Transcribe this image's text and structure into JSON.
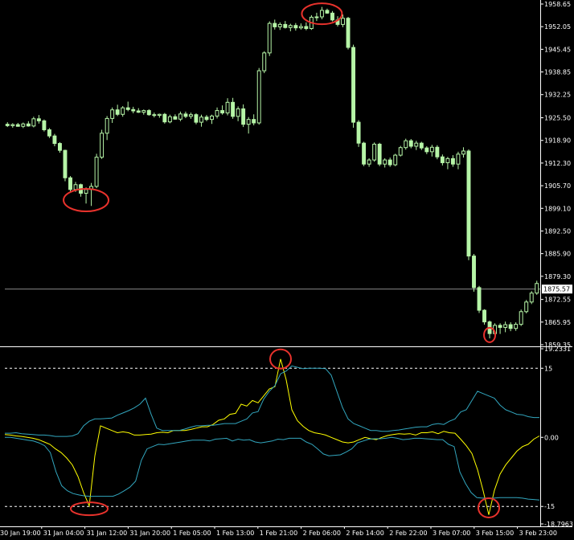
{
  "chart_data": [
    {
      "type": "candlestick",
      "y_ticks": [
        "1958.65",
        "1952.05",
        "1945.45",
        "1938.85",
        "1932.25",
        "1925.50",
        "1918.90",
        "1912.30",
        "1905.70",
        "1899.10",
        "1892.50",
        "1885.90",
        "1879.30",
        "1872.55",
        "1865.95",
        "1859.35"
      ],
      "ylim": [
        1859.35,
        1958.65
      ],
      "current_price": "1875.57",
      "candles_ohlc": [
        [
          1923.6,
          1924.2,
          1922.8,
          1923.2
        ],
        [
          1923.2,
          1923.9,
          1922.6,
          1923.5
        ],
        [
          1923.5,
          1924.0,
          1922.9,
          1923.0
        ],
        [
          1923.0,
          1924.1,
          1922.5,
          1923.7
        ],
        [
          1923.7,
          1924.5,
          1922.9,
          1923.1
        ],
        [
          1923.1,
          1925.8,
          1922.7,
          1925.2
        ],
        [
          1925.2,
          1926.3,
          1923.8,
          1924.6
        ],
        [
          1924.6,
          1925.0,
          1921.5,
          1922.0
        ],
        [
          1922.0,
          1922.5,
          1919.6,
          1920.2
        ],
        [
          1920.2,
          1920.8,
          1917.2,
          1918.0
        ],
        [
          1918.0,
          1918.4,
          1915.3,
          1916.0
        ],
        [
          1916.0,
          1916.2,
          1907.0,
          1908.0
        ],
        [
          1908.0,
          1908.5,
          1903.6,
          1904.6
        ],
        [
          1904.6,
          1906.8,
          1903.9,
          1906.0
        ],
        [
          1906.0,
          1906.3,
          1902.5,
          1903.5
        ],
        [
          1903.5,
          1905.2,
          1900.5,
          1904.6
        ],
        [
          1904.6,
          1906.5,
          1899.8,
          1905.5
        ],
        [
          1905.5,
          1915.0,
          1905.0,
          1914.0
        ],
        [
          1914.0,
          1922.0,
          1913.5,
          1921.0
        ],
        [
          1921.0,
          1926.0,
          1919.0,
          1925.3
        ],
        [
          1925.3,
          1928.5,
          1924.0,
          1927.8
        ],
        [
          1927.8,
          1929.3,
          1926.0,
          1926.5
        ],
        [
          1926.5,
          1928.9,
          1925.8,
          1928.4
        ],
        [
          1928.4,
          1930.2,
          1927.4,
          1927.9
        ],
        [
          1927.9,
          1928.7,
          1926.8,
          1927.5
        ],
        [
          1927.5,
          1928.3,
          1926.9,
          1927.1
        ],
        [
          1927.1,
          1927.9,
          1926.4,
          1927.6
        ],
        [
          1927.6,
          1928.0,
          1926.1,
          1926.4
        ],
        [
          1926.4,
          1927.0,
          1925.6,
          1926.2
        ],
        [
          1926.2,
          1926.7,
          1925.5,
          1926.5
        ],
        [
          1926.5,
          1926.9,
          1923.8,
          1924.3
        ],
        [
          1924.3,
          1926.4,
          1923.9,
          1925.8
        ],
        [
          1925.8,
          1926.5,
          1924.9,
          1925.1
        ],
        [
          1925.1,
          1927.3,
          1924.5,
          1926.6
        ],
        [
          1926.6,
          1927.3,
          1925.4,
          1925.9
        ],
        [
          1925.9,
          1927.0,
          1925.2,
          1926.4
        ],
        [
          1926.4,
          1926.8,
          1923.6,
          1924.2
        ],
        [
          1924.2,
          1926.4,
          1922.9,
          1925.7
        ],
        [
          1925.7,
          1926.3,
          1924.5,
          1925.0
        ],
        [
          1925.0,
          1926.4,
          1923.7,
          1926.0
        ],
        [
          1926.0,
          1928.5,
          1925.3,
          1927.6
        ],
        [
          1927.6,
          1929.1,
          1926.4,
          1926.9
        ],
        [
          1926.9,
          1931.2,
          1926.2,
          1930.0
        ],
        [
          1930.0,
          1931.3,
          1925.2,
          1925.9
        ],
        [
          1925.9,
          1928.8,
          1924.5,
          1928.1
        ],
        [
          1928.1,
          1929.4,
          1922.8,
          1923.6
        ],
        [
          1923.6,
          1925.7,
          1920.9,
          1925.0
        ],
        [
          1925.0,
          1926.5,
          1923.3,
          1924.0
        ],
        [
          1924.0,
          1940.0,
          1923.5,
          1939.2
        ],
        [
          1939.2,
          1944.9,
          1938.5,
          1944.4
        ],
        [
          1944.4,
          1953.6,
          1943.5,
          1953.0
        ],
        [
          1953.0,
          1954.1,
          1951.2,
          1952.0
        ],
        [
          1952.0,
          1953.3,
          1951.1,
          1952.7
        ],
        [
          1952.7,
          1953.7,
          1951.5,
          1951.8
        ],
        [
          1951.8,
          1952.9,
          1950.7,
          1952.4
        ],
        [
          1952.4,
          1953.1,
          1950.9,
          1951.7
        ],
        [
          1951.7,
          1953.0,
          1951.2,
          1952.1
        ],
        [
          1952.1,
          1953.3,
          1951.0,
          1951.5
        ],
        [
          1951.5,
          1955.4,
          1951.1,
          1954.8
        ],
        [
          1954.8,
          1956.1,
          1953.7,
          1954.9
        ],
        [
          1954.9,
          1957.8,
          1954.2,
          1956.8
        ],
        [
          1956.8,
          1957.3,
          1955.8,
          1956.0
        ],
        [
          1956.0,
          1956.6,
          1953.6,
          1954.0
        ],
        [
          1954.0,
          1955.1,
          1952.1,
          1952.7
        ],
        [
          1952.7,
          1955.6,
          1951.9,
          1954.5
        ],
        [
          1954.5,
          1954.9,
          1945.4,
          1946.0
        ],
        [
          1946.0,
          1946.8,
          1922.6,
          1924.2
        ],
        [
          1924.2,
          1924.8,
          1917.0,
          1918.1
        ],
        [
          1918.1,
          1918.5,
          1911.4,
          1912.0
        ],
        [
          1912.0,
          1913.7,
          1911.2,
          1913.2
        ],
        [
          1913.2,
          1918.3,
          1912.7,
          1917.8
        ],
        [
          1917.8,
          1918.2,
          1911.4,
          1912.0
        ],
        [
          1912.0,
          1913.7,
          1911.0,
          1913.2
        ],
        [
          1913.2,
          1913.9,
          1911.2,
          1911.8
        ],
        [
          1911.8,
          1915.0,
          1911.4,
          1914.6
        ],
        [
          1914.6,
          1917.3,
          1914.2,
          1916.8
        ],
        [
          1916.8,
          1919.4,
          1916.2,
          1918.8
        ],
        [
          1918.8,
          1919.3,
          1916.6,
          1917.2
        ],
        [
          1917.2,
          1918.8,
          1916.1,
          1918.1
        ],
        [
          1918.1,
          1918.5,
          1916.1,
          1916.7
        ],
        [
          1916.7,
          1917.2,
          1914.9,
          1915.6
        ],
        [
          1915.6,
          1917.6,
          1914.2,
          1916.9
        ],
        [
          1916.9,
          1917.5,
          1913.4,
          1914.1
        ],
        [
          1914.1,
          1914.8,
          1911.6,
          1912.4
        ],
        [
          1912.4,
          1914.1,
          1910.5,
          1913.6
        ],
        [
          1913.6,
          1914.6,
          1911.2,
          1912.0
        ],
        [
          1912.0,
          1915.6,
          1910.5,
          1914.9
        ],
        [
          1914.9,
          1916.9,
          1913.9,
          1915.8
        ],
        [
          1915.8,
          1916.3,
          1884.0,
          1885.2
        ],
        [
          1885.2,
          1885.8,
          1874.8,
          1876.0
        ],
        [
          1876.0,
          1876.5,
          1868.6,
          1869.4
        ],
        [
          1869.4,
          1869.7,
          1865.2,
          1866.0
        ],
        [
          1866.0,
          1866.4,
          1861.2,
          1862.6
        ],
        [
          1862.6,
          1865.6,
          1862.1,
          1865.0
        ],
        [
          1865.0,
          1865.6,
          1862.5,
          1864.4
        ],
        [
          1864.4,
          1866.1,
          1863.0,
          1865.2
        ],
        [
          1865.2,
          1865.9,
          1863.3,
          1864.1
        ],
        [
          1864.1,
          1865.9,
          1863.4,
          1865.3
        ],
        [
          1865.3,
          1869.6,
          1864.8,
          1869.0
        ],
        [
          1869.0,
          1872.4,
          1868.5,
          1871.8
        ],
        [
          1871.8,
          1875.0,
          1871.2,
          1874.4
        ],
        [
          1874.4,
          1878.0,
          1873.9,
          1877.2
        ]
      ]
    },
    {
      "type": "line",
      "y_ticks": [
        "19.2331",
        "15",
        "0.00",
        "-15",
        "-18.7963"
      ],
      "ylim": [
        -18.7963,
        19.2331
      ],
      "levels": [
        15,
        -15
      ],
      "x_tick_labels": [
        "30 Jan 19:00",
        "31 Jan 04:00",
        "31 Jan 12:00",
        "31 Jan 20:00",
        "1 Feb 05:00",
        "1 Feb 13:00",
        "1 Feb 21:00",
        "2 Feb 06:00",
        "2 Feb 14:00",
        "2 Feb 22:00",
        "3 Feb 07:00",
        "3 Feb 15:00",
        "3 Feb 23:00"
      ],
      "series": [
        {
          "color": "#FFFF00",
          "values": [
            0.6,
            0.5,
            0.3,
            0.2,
            0.0,
            -0.2,
            -0.5,
            -1.0,
            -1.5,
            -2.5,
            -3.3,
            -4.5,
            -6.0,
            -8.5,
            -12.0,
            -14.9,
            -4.0,
            2.5,
            2.0,
            1.5,
            1.0,
            1.2,
            1.0,
            0.5,
            0.5,
            0.6,
            0.7,
            1.0,
            1.1,
            1.0,
            1.5,
            1.5,
            1.5,
            1.7,
            2.0,
            2.3,
            2.3,
            2.8,
            3.7,
            4.0,
            5.0,
            5.2,
            7.2,
            6.8,
            8.0,
            7.5,
            9.0,
            10.5,
            11.0,
            17.0,
            12.5,
            6.0,
            3.6,
            2.4,
            1.5,
            1.0,
            0.8,
            0.5,
            0.0,
            -0.5,
            -1.0,
            -1.2,
            -1.0,
            -0.5,
            0.0,
            -0.3,
            -0.5,
            0.0,
            0.4,
            0.6,
            0.8,
            0.7,
            0.8,
            0.5,
            1.0,
            1.0,
            1.2,
            0.8,
            1.3,
            1.0,
            0.9,
            -0.4,
            -1.8,
            -3.5,
            -7.0,
            -11.6,
            -16.8,
            -11.5,
            -8.0,
            -6.0,
            -4.5,
            -3.0,
            -2.0,
            -1.5,
            -0.4,
            0.3
          ]
        },
        {
          "color": "#32A6BE",
          "values": [
            0.9,
            0.9,
            1.0,
            0.8,
            0.7,
            0.6,
            0.5,
            0.5,
            0.4,
            0.2,
            0.2,
            0.2,
            0.3,
            0.8,
            2.5,
            3.5,
            4.0,
            4.0,
            4.1,
            4.2,
            4.8,
            5.3,
            5.8,
            6.4,
            7.2,
            8.5,
            5.0,
            2.0,
            1.5,
            1.5,
            1.5,
            1.5,
            1.8,
            2.2,
            2.5,
            2.5,
            2.6,
            2.6,
            2.8,
            3.0,
            3.0,
            3.0,
            3.5,
            4.0,
            5.3,
            5.6,
            8.3,
            10.0,
            11.2,
            13.8,
            14.4,
            15.5,
            15.2,
            14.9,
            15.0,
            15.0,
            15.0,
            14.9,
            13.5,
            10.0,
            6.5,
            4.0,
            3.0,
            2.5,
            2.0,
            1.5,
            1.5,
            1.3,
            1.3,
            1.5,
            1.6,
            1.8,
            2.0,
            2.2,
            2.3,
            2.3,
            2.8,
            3.0,
            2.8,
            3.5,
            4.0,
            5.5,
            6.0,
            8.0,
            10.0,
            9.5,
            9.0,
            8.5,
            7.0,
            6.0,
            5.5,
            5.0,
            4.9,
            4.5,
            4.3,
            4.3
          ]
        },
        {
          "color": "#32A6BE",
          "values": [
            0.0,
            0.0,
            -0.2,
            -0.4,
            -0.6,
            -0.8,
            -1.2,
            -1.8,
            -3.3,
            -7.5,
            -10.5,
            -11.6,
            -12.2,
            -12.5,
            -12.7,
            -12.8,
            -12.8,
            -12.8,
            -12.8,
            -12.8,
            -12.3,
            -11.6,
            -10.8,
            -9.5,
            -5.0,
            -2.5,
            -2.0,
            -1.5,
            -1.6,
            -1.4,
            -1.2,
            -1.0,
            -0.8,
            -0.6,
            -0.6,
            -0.6,
            -0.8,
            -0.4,
            -0.3,
            -0.2,
            -0.8,
            -0.4,
            -0.6,
            -0.5,
            -1.0,
            -1.2,
            -1.0,
            -0.8,
            -0.4,
            -0.5,
            -0.2,
            -0.2,
            -0.2,
            -1.0,
            -1.5,
            -2.5,
            -3.6,
            -4.0,
            -3.9,
            -3.8,
            -3.2,
            -2.5,
            -1.2,
            -0.8,
            -0.4,
            -0.3,
            -0.3,
            -0.2,
            0.0,
            -0.2,
            -0.5,
            -0.4,
            -0.2,
            -0.2,
            -0.3,
            -0.4,
            -0.5,
            -0.5,
            -1.5,
            -2.0,
            -7.5,
            -10.0,
            -12.0,
            -13.1,
            -13.2,
            -13.2,
            -13.2,
            -13.1,
            -13.1,
            -13.1,
            -13.1,
            -13.2,
            -13.4,
            -13.5,
            -13.6
          ]
        }
      ]
    }
  ]
}
